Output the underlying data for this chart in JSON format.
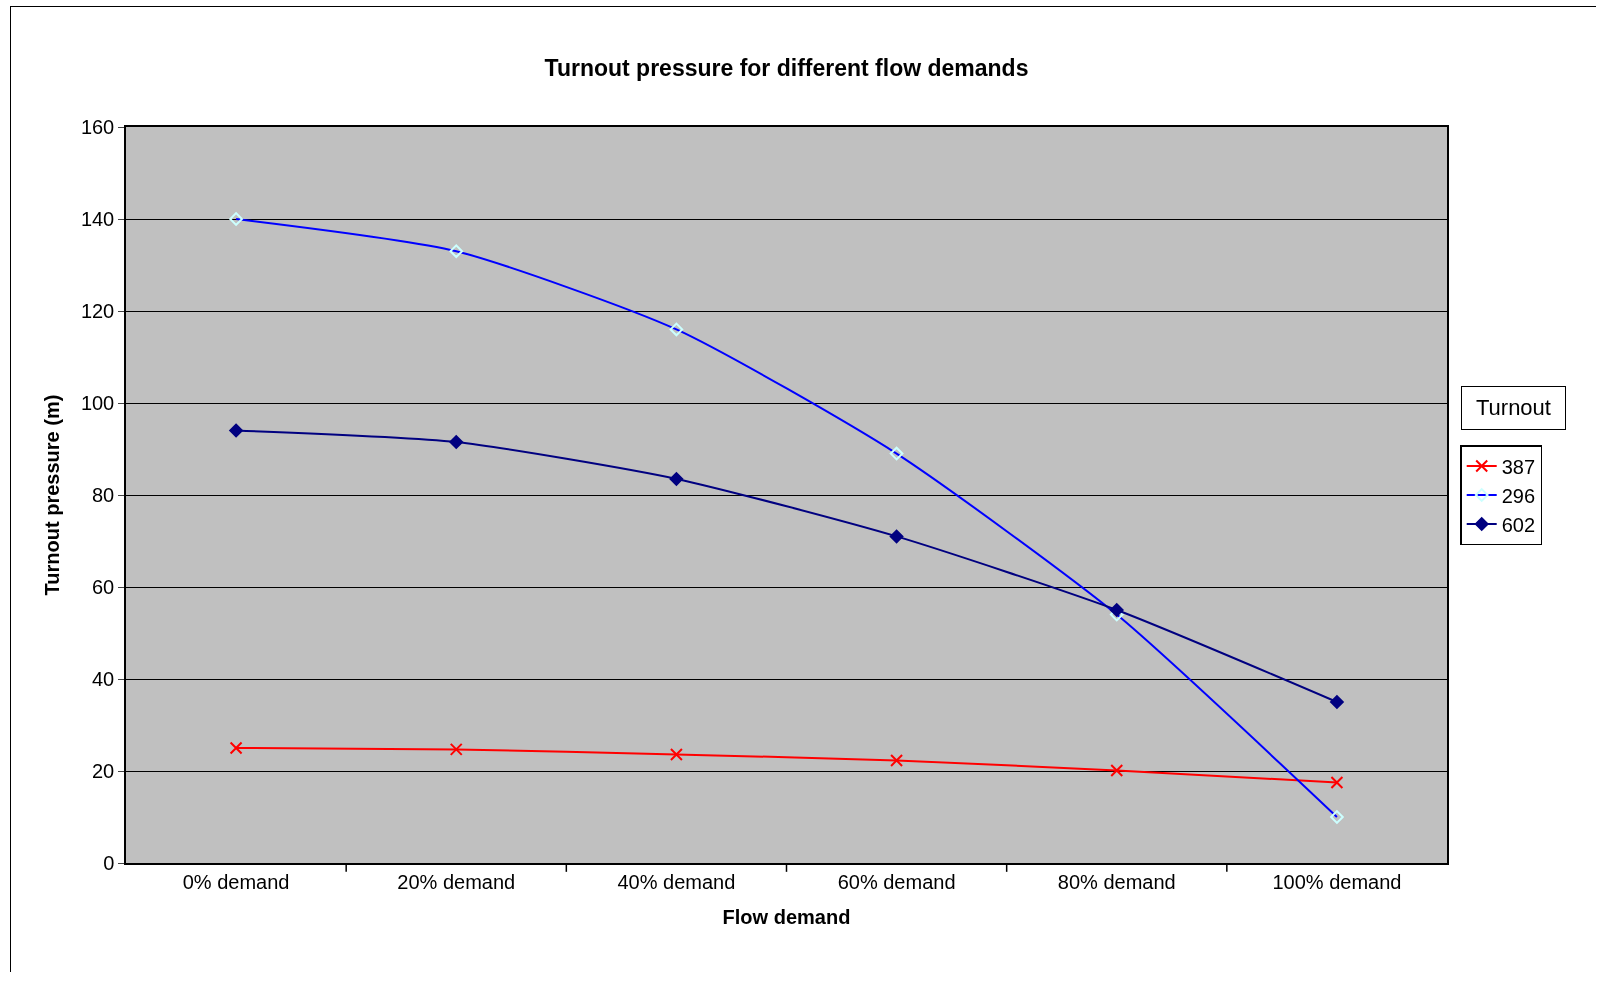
{
  "chart_data": {
    "type": "line",
    "title": "Turnout pressure for different flow demands",
    "xlabel": "Flow demand",
    "ylabel": "Turnout pressure (m)",
    "legend_title": "Turnout",
    "categories": [
      "0% demand",
      "20% demand",
      "40% demand",
      "60% demand",
      "80% demand",
      "100% demand"
    ],
    "series": [
      {
        "name": "387",
        "color": "#ff0000",
        "marker": "cross",
        "values": [
          25,
          24.7,
          23.6,
          22.3,
          20.1,
          17.5
        ]
      },
      {
        "name": "296",
        "color": "#0000ff",
        "marker": "diamond-open",
        "values": [
          140,
          133,
          116,
          89,
          54,
          10
        ]
      },
      {
        "name": "602",
        "color": "#000080",
        "marker": "diamond",
        "values": [
          94,
          91.5,
          83.5,
          71,
          55,
          35
        ]
      }
    ],
    "ylim": [
      0,
      160
    ],
    "yticks": [
      0,
      20,
      40,
      60,
      80,
      100,
      120,
      140,
      160
    ],
    "grid": "y",
    "legend": "right",
    "line_style": "solid"
  }
}
